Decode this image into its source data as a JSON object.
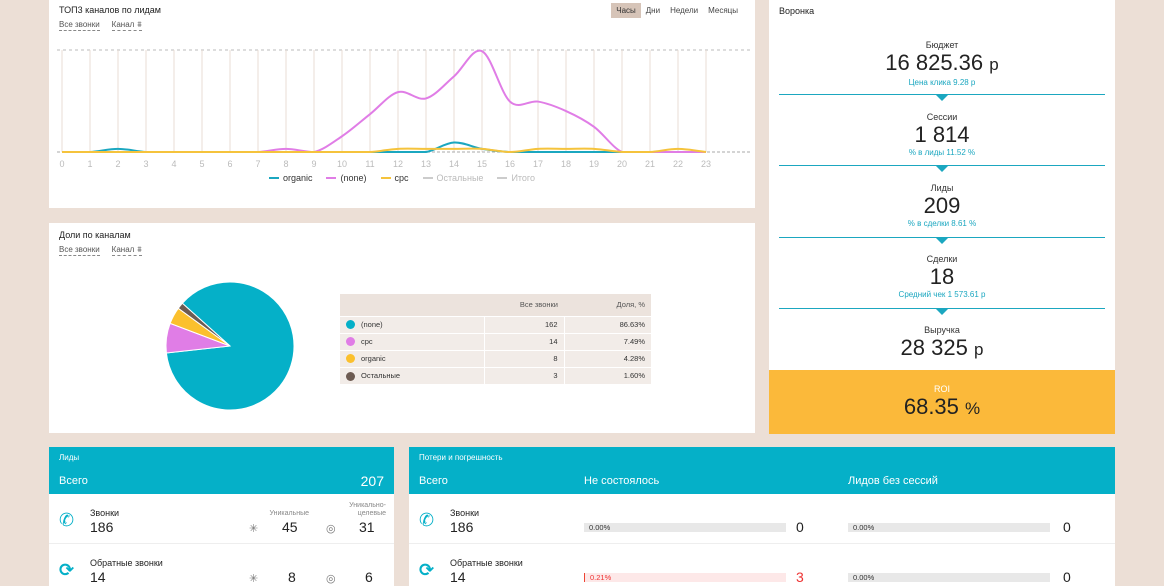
{
  "top3": {
    "title": "ТОП3 каналов по лидам",
    "filters": [
      "Все звонки",
      "Канал"
    ],
    "filter_icon": "funnel-glyph",
    "range": [
      "Часы",
      "Дни",
      "Недели",
      "Месяцы"
    ],
    "active_range": "Часы",
    "legend": [
      {
        "name": "organic",
        "color": "#1ba7c0",
        "enabled": true
      },
      {
        "name": "(none)",
        "color": "#e07de6",
        "enabled": true
      },
      {
        "name": "cpc",
        "color": "#f5c33c",
        "enabled": true
      },
      {
        "name": "Остальные",
        "color": "#cccccc",
        "enabled": false
      },
      {
        "name": "Итого",
        "color": "#cccccc",
        "enabled": false
      }
    ]
  },
  "chart_data": {
    "type": "line",
    "title": "ТОП3 каналов по лидам",
    "x": [
      0,
      1,
      2,
      3,
      4,
      5,
      6,
      7,
      8,
      9,
      10,
      11,
      12,
      13,
      14,
      15,
      16,
      17,
      18,
      19,
      20,
      21,
      22,
      23
    ],
    "series": [
      {
        "name": "organic",
        "color": "#1ba7c0",
        "values": [
          0,
          0,
          1,
          0,
          0,
          0,
          0,
          0,
          0,
          0,
          0,
          0,
          0,
          0,
          3,
          1,
          0,
          0,
          0,
          0,
          0,
          0,
          0,
          0
        ]
      },
      {
        "name": "(none)",
        "color": "#e07de6",
        "values": [
          0,
          0,
          0,
          0,
          0,
          0,
          0,
          0,
          1,
          0,
          5,
          12,
          19,
          17,
          24,
          32,
          16,
          16,
          13,
          8,
          0,
          0,
          0,
          0
        ]
      },
      {
        "name": "cpc",
        "color": "#f5c33c",
        "values": [
          0,
          0,
          0,
          0,
          0,
          0,
          0,
          0,
          0,
          0,
          0,
          0,
          1,
          1,
          1,
          1,
          0,
          1,
          1,
          1,
          0,
          0,
          1,
          0
        ]
      }
    ],
    "ylim": [
      0,
      33
    ],
    "xlabel": "",
    "ylabel": ""
  },
  "share": {
    "title": "Доли по каналам",
    "filters": [
      "Все звонки",
      "Канал"
    ],
    "filter_icon": "funnel-glyph",
    "headers": [
      "Все звонки",
      "Доля, %"
    ],
    "rows": [
      {
        "name": "(none)",
        "calls": "162",
        "pct": "86.63%",
        "color": "#e07de6",
        "value": 162
      },
      {
        "name": "cpc",
        "calls": "14",
        "pct": "7.49%",
        "color": "#fbb93a",
        "value": 14
      },
      {
        "name": "organic",
        "calls": "8",
        "pct": "4.28%",
        "color": "#1ba7c0",
        "value": 8
      },
      {
        "name": "Остальные",
        "calls": "3",
        "pct": "1.60%",
        "color": "#6d5b52",
        "value": 3
      }
    ],
    "pie_colors": [
      "#05b0c8",
      "#e07de6",
      "#fbc02d",
      "#6d5b52"
    ]
  },
  "funnel": {
    "title": "Воронка",
    "stages": [
      {
        "label": "Бюджет",
        "value": "16 825.36",
        "unit": "р",
        "sub": "Цена клика 9.28 р"
      },
      {
        "label": "Сессии",
        "value": "1 814",
        "unit": "",
        "sub": "% в лиды 11.52 %"
      },
      {
        "label": "Лиды",
        "value": "209",
        "unit": "",
        "sub": "% в сделки 8.61 %"
      },
      {
        "label": "Сделки",
        "value": "18",
        "unit": "",
        "sub": "Средний чек 1 573.61 р"
      },
      {
        "label": "Выручка",
        "value": "28 325",
        "unit": "р",
        "sub": ""
      }
    ],
    "roi_label": "ROI",
    "roi_value": "68.35",
    "roi_unit": "%"
  },
  "leads": {
    "title": "Лиды",
    "total_label": "Всего",
    "total_value": "207",
    "unique_label": "Уникальные",
    "unique_target_label": "Уникально-целевые",
    "unique_icon": "asterisk-icon",
    "unique_target_icon": "target-icon",
    "rows": [
      {
        "label": "Звонки",
        "value": "186",
        "unique": "45",
        "target": "31",
        "icon": "phone-icon"
      },
      {
        "label": "Обратные звонки",
        "value": "14",
        "unique": "8",
        "target": "6",
        "icon": "callback-icon"
      }
    ]
  },
  "losses": {
    "title": "Потери и погрешность",
    "col_total": "Всего",
    "col_failed": "Не состоялось",
    "col_nosession": "Лидов без сессий",
    "rows": [
      {
        "label": "Звонки",
        "value": "186",
        "failed_pct": "0.00%",
        "failed": "0",
        "nos_pct": "0.00%",
        "nos": "0",
        "alert": false
      },
      {
        "label": "Обратные звонки",
        "value": "14",
        "failed_pct": "0.21%",
        "failed": "3",
        "nos_pct": "0.00%",
        "nos": "0",
        "alert": true
      }
    ]
  }
}
